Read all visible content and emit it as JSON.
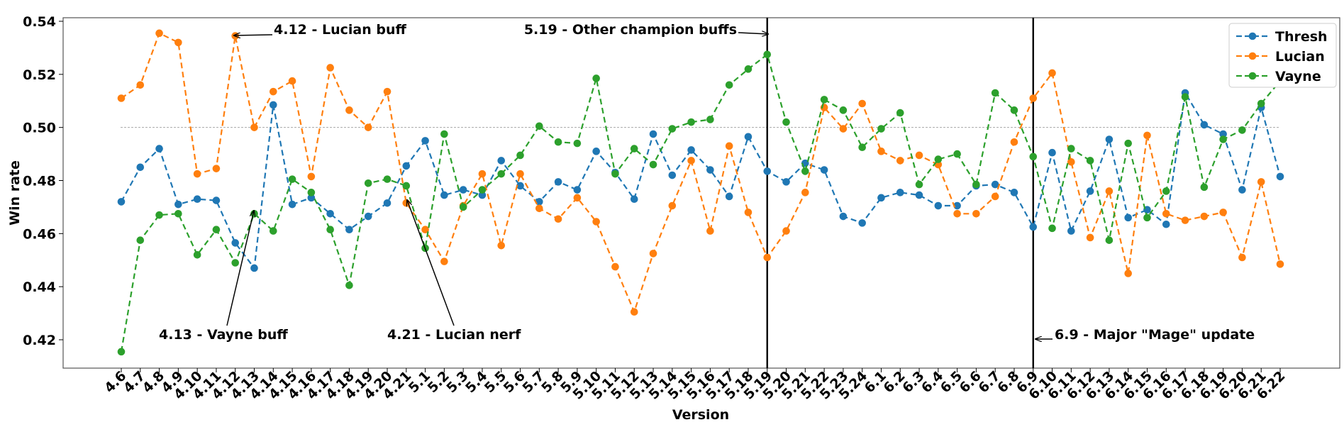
{
  "chart_data": {
    "type": "line",
    "title": "",
    "xlabel": "Version",
    "ylabel": "Win rate",
    "ylim": [
      0.41,
      0.541
    ],
    "yticks": [
      "0.42",
      "0.44",
      "0.46",
      "0.48",
      "0.50",
      "0.52",
      "0.54"
    ],
    "grid": false,
    "reference_line": 0.5,
    "legend_position": "top-right",
    "categories": [
      "4.6",
      "4.7",
      "4.8",
      "4.9",
      "4.10",
      "4.11",
      "4.12",
      "4.13",
      "4.14",
      "4.15",
      "4.16",
      "4.17",
      "4.18",
      "4.19",
      "4.20",
      "4.21",
      "5.1",
      "5.2",
      "5.3",
      "5.4",
      "5.5",
      "5.6",
      "5.7",
      "5.8",
      "5.9",
      "5.10",
      "5.11",
      "5.12",
      "5.13",
      "5.14",
      "5.15",
      "5.16",
      "5.17",
      "5.18",
      "5.19",
      "5.20",
      "5.21",
      "5.22",
      "5.23",
      "5.24",
      "6.1",
      "6.2",
      "6.3",
      "6.4",
      "6.5",
      "6.6",
      "6.7",
      "6.8",
      "6.9",
      "6.10",
      "6.11",
      "6.12",
      "6.13",
      "6.14",
      "6.15",
      "6.16",
      "6.17",
      "6.18",
      "6.19",
      "6.20",
      "6.21",
      "6.22"
    ],
    "series": [
      {
        "name": "Thresh",
        "color": "#1f77b4",
        "values": [
          0.472,
          0.485,
          0.492,
          0.471,
          0.473,
          0.4725,
          0.4565,
          0.447,
          0.5085,
          0.471,
          0.4735,
          0.4675,
          0.4615,
          0.4665,
          0.4715,
          0.4855,
          0.495,
          0.4745,
          0.4765,
          0.4745,
          0.4875,
          0.478,
          0.472,
          0.4795,
          0.4765,
          0.491,
          0.483,
          0.473,
          0.4975,
          0.482,
          0.4915,
          0.484,
          0.474,
          0.4965,
          0.4835,
          0.4795,
          0.4865,
          0.484,
          0.4665,
          0.464,
          0.4735,
          0.4755,
          0.4745,
          0.4705,
          0.4705,
          0.478,
          0.4785,
          0.4755,
          0.4625,
          0.4905,
          0.461,
          0.476,
          0.4955,
          0.466,
          0.469,
          0.4635,
          0.513,
          0.501,
          0.4975,
          0.4765,
          0.5075,
          0.4815
        ]
      },
      {
        "name": "Lucian",
        "color": "#ff7f0e",
        "values": [
          0.511,
          0.516,
          0.5355,
          0.532,
          0.4825,
          0.4845,
          0.5345,
          0.5,
          0.5135,
          0.5175,
          0.4815,
          0.5225,
          0.5065,
          0.5,
          0.5135,
          0.4715,
          0.4615,
          0.4495,
          0.4705,
          0.4825,
          0.4555,
          0.4825,
          0.4695,
          0.4655,
          0.4735,
          0.4645,
          0.4475,
          0.4305,
          0.4525,
          0.4705,
          0.4875,
          0.461,
          0.493,
          0.468,
          0.451,
          0.461,
          0.4755,
          0.5075,
          0.4995,
          0.509,
          0.491,
          0.4875,
          0.4895,
          0.486,
          0.4675,
          0.4675,
          0.474,
          0.4945,
          0.511,
          0.5205,
          0.487,
          0.4585,
          0.476,
          0.445,
          0.497,
          0.4675,
          0.465,
          0.4665,
          0.468,
          0.451,
          0.4795,
          0.4485
        ]
      },
      {
        "name": "Vayne",
        "color": "#2ca02c",
        "values": [
          0.4155,
          0.4575,
          0.467,
          0.4675,
          0.452,
          0.4615,
          0.449,
          0.4675,
          0.461,
          0.4805,
          0.4755,
          0.4615,
          0.4405,
          0.479,
          0.4805,
          0.478,
          0.4545,
          0.4975,
          0.47,
          0.4765,
          0.4825,
          0.4895,
          0.5005,
          0.4945,
          0.494,
          0.5185,
          0.4825,
          0.492,
          0.486,
          0.4995,
          0.502,
          0.503,
          0.516,
          0.522,
          0.5275,
          0.502,
          0.4835,
          0.5105,
          0.5065,
          0.4925,
          0.4995,
          0.5055,
          0.4785,
          0.488,
          0.49,
          0.4785,
          0.513,
          0.5065,
          0.489,
          0.462,
          0.492,
          0.4875,
          0.4575,
          0.494,
          0.466,
          0.476,
          0.5115,
          0.4775,
          0.4955,
          0.499,
          0.509,
          0.5175
        ]
      }
    ],
    "vlines": [
      "5.19",
      "6.9"
    ],
    "annotations": [
      {
        "text": "4.12 - Lucian buff",
        "target_category": "4.12",
        "target_value": 0.5345,
        "text_category": "4.14",
        "text_value": 0.5355
      },
      {
        "text": "4.13 - Vayne buff",
        "target_category": "4.13",
        "target_value": 0.4675,
        "text_category": "4.13",
        "text_value": 0.42
      },
      {
        "text": "4.21 - Lucian nerf",
        "target_category": "4.21",
        "target_value": 0.4715,
        "text_category": "5.2",
        "text_value": 0.42
      },
      {
        "text": "5.19 - Other champion buffs",
        "target_category": "5.19",
        "target_value": 0.5345,
        "text_category": "5.19",
        "text_value": 0.5355
      },
      {
        "text": "6.9 - Major \"Mage\" update",
        "target_category": "6.9",
        "target_value": 0.42,
        "text_category": "6.9",
        "text_value": 0.42
      }
    ]
  }
}
